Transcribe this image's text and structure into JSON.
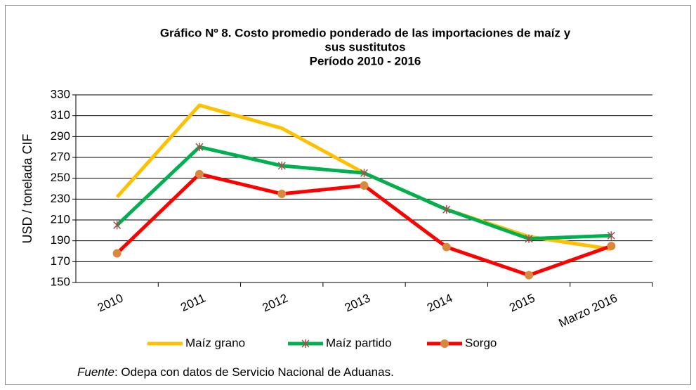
{
  "chart_data": {
    "type": "line",
    "title": [
      "Gráfico Nº 8. Costo promedio ponderado de las importaciones de maíz y",
      "sus sustitutos",
      "Período 2010 - 2016"
    ],
    "y_label": "USD / tonelada CIF",
    "categories": [
      "2010",
      "2011",
      "2012",
      "2013",
      "2014",
      "2015",
      "Marzo 2016"
    ],
    "series": [
      {
        "name": "Maíz grano",
        "color": "#ffc000",
        "marker": null,
        "values": [
          232,
          320,
          298,
          255,
          220,
          194,
          182
        ]
      },
      {
        "name": "Maíz partido",
        "color": "#00b050",
        "marker": "x",
        "marker_color": "#a0504a",
        "values": [
          205,
          280,
          262,
          255,
          220,
          192,
          195
        ]
      },
      {
        "name": "Sorgo",
        "color": "#ff0000",
        "marker": "circle",
        "marker_color": "#d9893e",
        "values": [
          178,
          254,
          235,
          243,
          184,
          157,
          185
        ]
      }
    ],
    "ylim": [
      150,
      330
    ],
    "yticks": [
      150,
      170,
      190,
      210,
      230,
      250,
      270,
      290,
      310,
      330
    ],
    "grid": true,
    "legend": "bottom",
    "footnote": {
      "label": "Fuente",
      "text": ": Odepa con datos de Servicio Nacional de Aduanas."
    }
  }
}
